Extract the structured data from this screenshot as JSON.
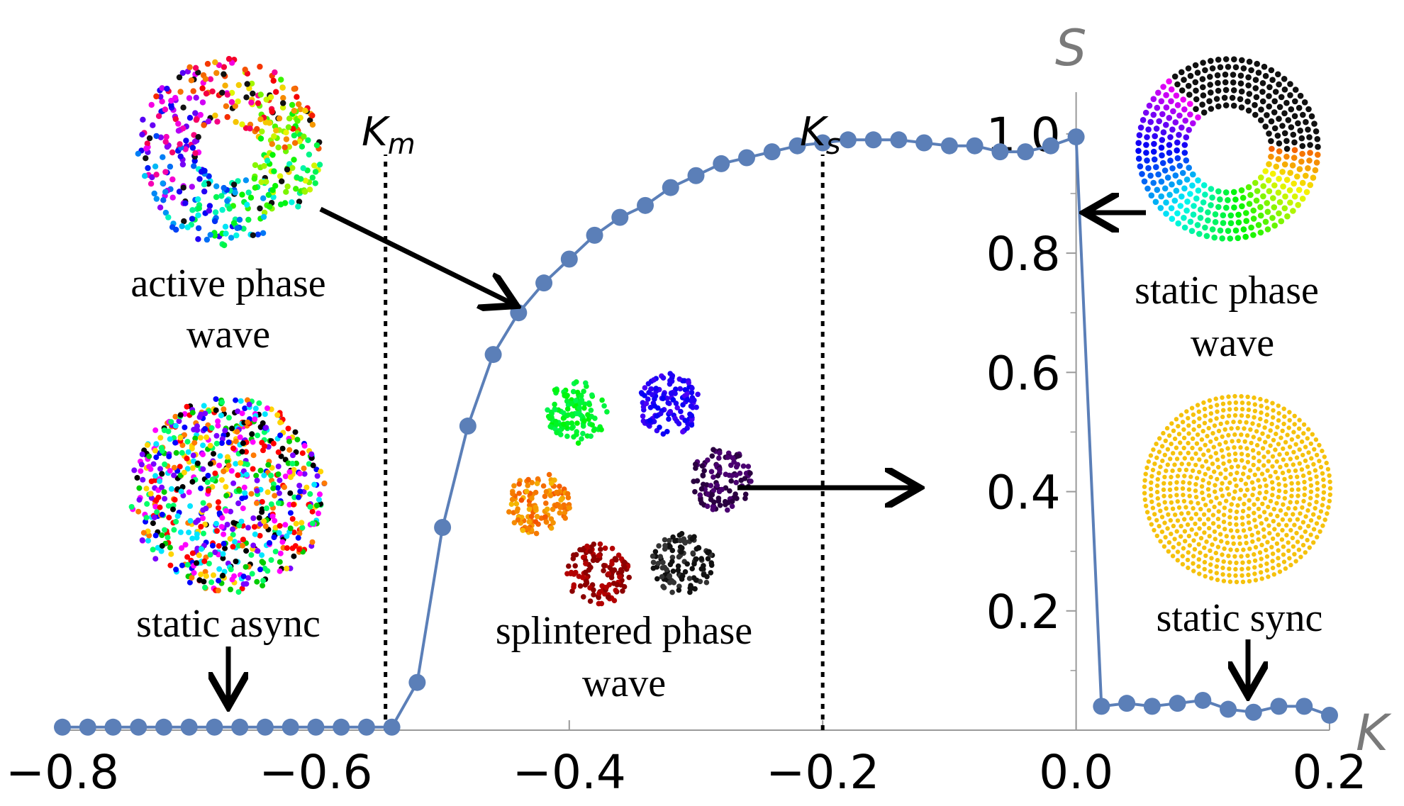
{
  "chart_data": {
    "type": "line",
    "title": "",
    "xlabel": "K",
    "ylabel": "S",
    "xlim": [
      -0.8,
      0.2
    ],
    "ylim": [
      0.0,
      1.07
    ],
    "x_ticks": [
      "−0.8",
      "−0.6",
      "−0.4",
      "−0.2",
      "0.0",
      "0.2"
    ],
    "x_tick_values": [
      -0.8,
      -0.6,
      -0.4,
      -0.2,
      0.0,
      0.2
    ],
    "y_ticks": [
      "0.2",
      "0.4",
      "0.6",
      "0.8",
      "1.0"
    ],
    "y_tick_values": [
      0.2,
      0.4,
      0.6,
      0.8,
      1.0
    ],
    "color": "#5b7fb8",
    "series": [
      {
        "name": "S",
        "x": [
          -0.8,
          -0.78,
          -0.76,
          -0.74,
          -0.72,
          -0.7,
          -0.68,
          -0.66,
          -0.64,
          -0.62,
          -0.6,
          -0.58,
          -0.56,
          -0.54,
          -0.52,
          -0.5,
          -0.48,
          -0.46,
          -0.44,
          -0.42,
          -0.4,
          -0.38,
          -0.36,
          -0.34,
          -0.32,
          -0.3,
          -0.28,
          -0.26,
          -0.24,
          -0.22,
          -0.2,
          -0.18,
          -0.16,
          -0.14,
          -0.12,
          -0.1,
          -0.08,
          -0.06,
          -0.04,
          -0.02,
          0.0,
          0.02,
          0.04,
          0.06,
          0.08,
          0.1,
          0.12,
          0.14,
          0.16,
          0.18,
          0.2
        ],
        "values": [
          0.005,
          0.005,
          0.005,
          0.005,
          0.005,
          0.005,
          0.005,
          0.005,
          0.005,
          0.005,
          0.005,
          0.005,
          0.005,
          0.005,
          0.08,
          0.34,
          0.51,
          0.63,
          0.7,
          0.75,
          0.79,
          0.83,
          0.86,
          0.88,
          0.91,
          0.93,
          0.95,
          0.96,
          0.97,
          0.98,
          0.985,
          0.99,
          0.99,
          0.99,
          0.985,
          0.98,
          0.98,
          0.97,
          0.97,
          0.98,
          0.995,
          0.04,
          0.045,
          0.04,
          0.045,
          0.05,
          0.035,
          0.03,
          0.04,
          0.04,
          0.025
        ]
      }
    ],
    "vlines": [
      {
        "label_main": "K",
        "label_sub": "m",
        "x": -0.545
      },
      {
        "label_main": "K",
        "label_sub": "s",
        "x": -0.2
      }
    ],
    "annotations": [
      {
        "id": "active",
        "lines": [
          "active phase",
          "wave"
        ]
      },
      {
        "id": "async",
        "lines": [
          "static async"
        ]
      },
      {
        "id": "splintered",
        "lines": [
          "splintered phase",
          "wave"
        ]
      },
      {
        "id": "static-wave",
        "lines": [
          "static phase",
          "wave"
        ]
      },
      {
        "id": "sync",
        "lines": [
          "static sync"
        ]
      }
    ]
  },
  "colors": {
    "series": "#5b7fb8",
    "sync_dot": "#f5c10c",
    "axis": "#9a9a9a"
  }
}
